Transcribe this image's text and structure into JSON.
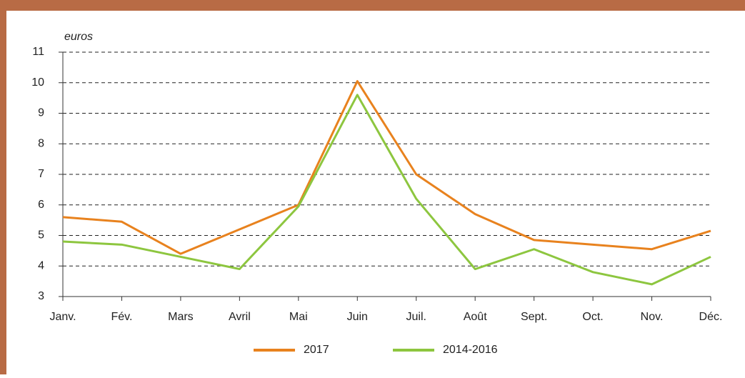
{
  "chart_data": {
    "type": "line",
    "y_label": "euros",
    "categories": [
      "Janv.",
      "Fév.",
      "Mars",
      "Avril",
      "Mai",
      "Juin",
      "Juil.",
      "Août",
      "Sept.",
      "Oct.",
      "Nov.",
      "Déc."
    ],
    "series": [
      {
        "name": "2017",
        "color": "#e8821e",
        "values": [
          5.6,
          5.45,
          4.4,
          5.2,
          6.0,
          10.05,
          7.0,
          5.7,
          4.85,
          4.7,
          4.55,
          5.15
        ]
      },
      {
        "name": "2014-2016",
        "color": "#8dc63f",
        "values": [
          4.8,
          4.7,
          4.3,
          3.9,
          5.95,
          9.6,
          6.2,
          3.9,
          4.55,
          3.8,
          3.4,
          4.3
        ]
      }
    ],
    "ylim": [
      3,
      11
    ],
    "yticks": [
      3,
      4,
      5,
      6,
      7,
      8,
      9,
      10,
      11
    ],
    "grid": true,
    "legend": "bottom"
  }
}
